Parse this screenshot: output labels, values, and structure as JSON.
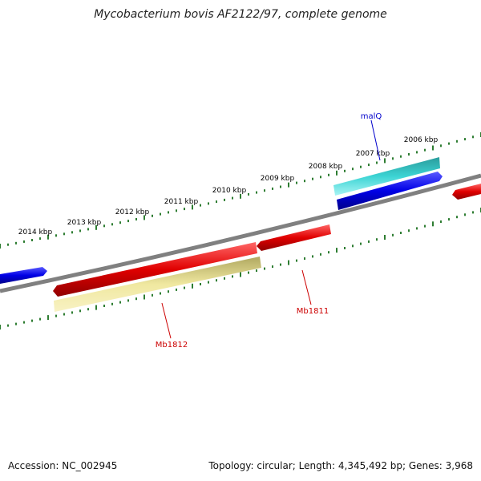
{
  "title": "Mycobacterium bovis AF2122/97, complete genome",
  "footer": {
    "accession": "Accession: NC_002945",
    "summary": "Topology: circular; Length: 4,345,492 bp; Genes: 3,968"
  },
  "ruler_labels": [
    "2006 kbp",
    "2007 kbp",
    "2008 kbp",
    "2009 kbp",
    "2010 kbp",
    "2011 kbp",
    "2012 kbp",
    "2013 kbp",
    "2014 kbp"
  ],
  "gene_labels": {
    "malq": "malQ",
    "mb1811": "Mb1811",
    "mb1812": "Mb1812"
  },
  "colors": {
    "forward_cds": "#0000ee",
    "reverse_cds": "#e00000",
    "rna": "#30c8c8",
    "pseudo": "#f0e68c",
    "backbone": "#808080",
    "ticks": "#2e7d32",
    "label_forward": "#0000cc",
    "label_reverse": "#cc0000"
  }
}
